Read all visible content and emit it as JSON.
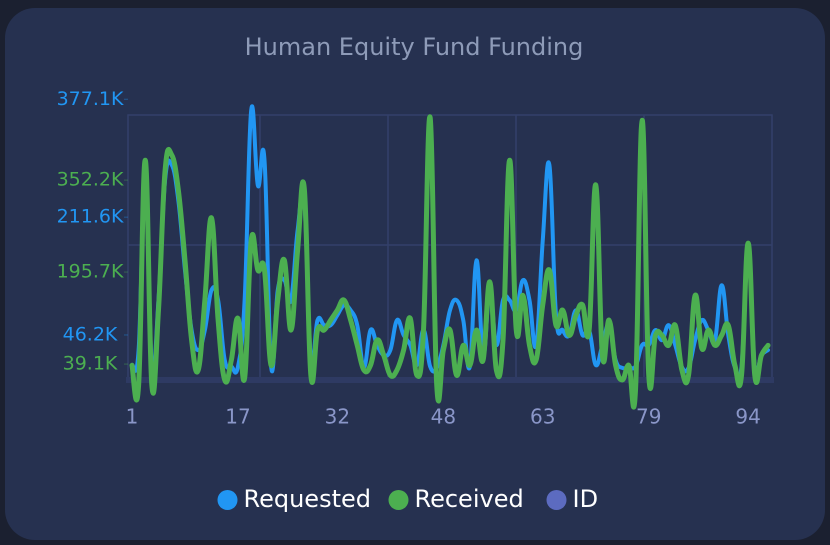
{
  "chart_data": {
    "type": "line",
    "title": "Human Equity Fund Funding",
    "x": [
      1,
      2,
      3,
      4,
      5,
      6,
      7,
      8,
      9,
      10,
      11,
      12,
      13,
      14,
      15,
      16,
      17,
      18,
      19,
      20,
      21,
      22,
      23,
      24,
      25,
      26,
      27,
      28,
      29,
      30,
      31,
      32,
      33,
      34,
      35,
      36,
      37,
      38,
      39,
      40,
      41,
      42,
      43,
      44,
      45,
      46,
      47,
      48,
      49,
      50,
      51,
      52,
      53,
      54,
      55,
      56,
      57,
      58,
      59,
      60,
      61,
      62,
      63,
      64,
      65,
      66,
      67,
      68,
      69,
      70,
      71,
      72,
      73,
      74,
      75,
      76,
      77,
      78,
      79,
      80,
      81,
      82,
      83,
      84,
      85,
      86,
      87,
      88,
      89,
      90,
      91,
      92,
      93,
      94,
      95,
      96,
      97
    ],
    "xlim": [
      0.4,
      97.6
    ],
    "xticks": [
      1,
      17,
      32,
      48,
      63,
      79,
      94
    ],
    "ylim": [
      -17000,
      355000
    ],
    "yticks": [
      {
        "value": 46200,
        "label": "46.2K"
      },
      {
        "value": 211600,
        "label": "211.6K"
      },
      {
        "value": 377100,
        "label": "377.1K"
      }
    ],
    "y2lim": [
      12000,
      463000
    ],
    "y2ticks": [
      {
        "value": 39100,
        "label": "39.1K"
      },
      {
        "value": 195700,
        "label": "195.7K"
      },
      {
        "value": 352200,
        "label": "352.2K"
      }
    ],
    "legend": "bottom",
    "series": [
      {
        "name": "Requested",
        "color": "#2196f3",
        "values": [
          4000,
          25000,
          270000,
          0,
          95000,
          264000,
          285000,
          235000,
          137000,
          53000,
          25000,
          53000,
          109000,
          95000,
          11000,
          2000,
          2000,
          95000,
          362000,
          256000,
          292000,
          2000,
          109000,
          123000,
          95000,
          193000,
          235000,
          11000,
          67000,
          60000,
          60000,
          74000,
          88000,
          81000,
          60000,
          1000,
          53000,
          32000,
          18000,
          25000,
          67000,
          46000,
          32000,
          4000,
          53000,
          2000,
          0,
          32000,
          81000,
          95000,
          67000,
          2000,
          151000,
          18000,
          109000,
          32000,
          95000,
          95000,
          81000,
          123000,
          95000,
          32000,
          179000,
          285000,
          74000,
          53000,
          46000,
          81000,
          46000,
          53000,
          4000,
          32000,
          60000,
          11000,
          0,
          1000,
          2000,
          32000,
          32000,
          53000,
          39000,
          60000,
          32000,
          1000,
          0,
          39000,
          67000,
          53000,
          39000,
          116000,
          46000,
          1000,
          2000,
          165000,
          1000,
          18000,
          25000
        ]
      },
      {
        "name": "Received",
        "color": "#4caf50",
        "axis": "y2",
        "values": [
          37000,
          3000,
          386000,
          3000,
          131000,
          369000,
          395000,
          335000,
          216000,
          80000,
          29000,
          148000,
          288000,
          114000,
          12000,
          46000,
          117000,
          15000,
          250000,
          199000,
          199000,
          37000,
          148000,
          216000,
          97000,
          233000,
          339000,
          20000,
          97000,
          97000,
          114000,
          131000,
          148000,
          114000,
          71000,
          29000,
          37000,
          80000,
          54000,
          20000,
          29000,
          63000,
          117000,
          20000,
          97000,
          459000,
          3000,
          63000,
          97000,
          20000,
          71000,
          37000,
          97000,
          46000,
          179000,
          29000,
          80000,
          386000,
          97000,
          156000,
          71000,
          46000,
          140000,
          199000,
          105000,
          131000,
          88000,
          122000,
          140000,
          97000,
          344000,
          54000,
          114000,
          37000,
          12000,
          37000,
          -5000,
          454000,
          20000,
          88000,
          88000,
          71000,
          105000,
          29000,
          20000,
          156000,
          66000,
          97000,
          71000,
          88000,
          105000,
          37000,
          20000,
          245000,
          20000,
          54000,
          71000
        ]
      },
      {
        "name": "ID",
        "color": "#5c6bc0"
      }
    ]
  }
}
